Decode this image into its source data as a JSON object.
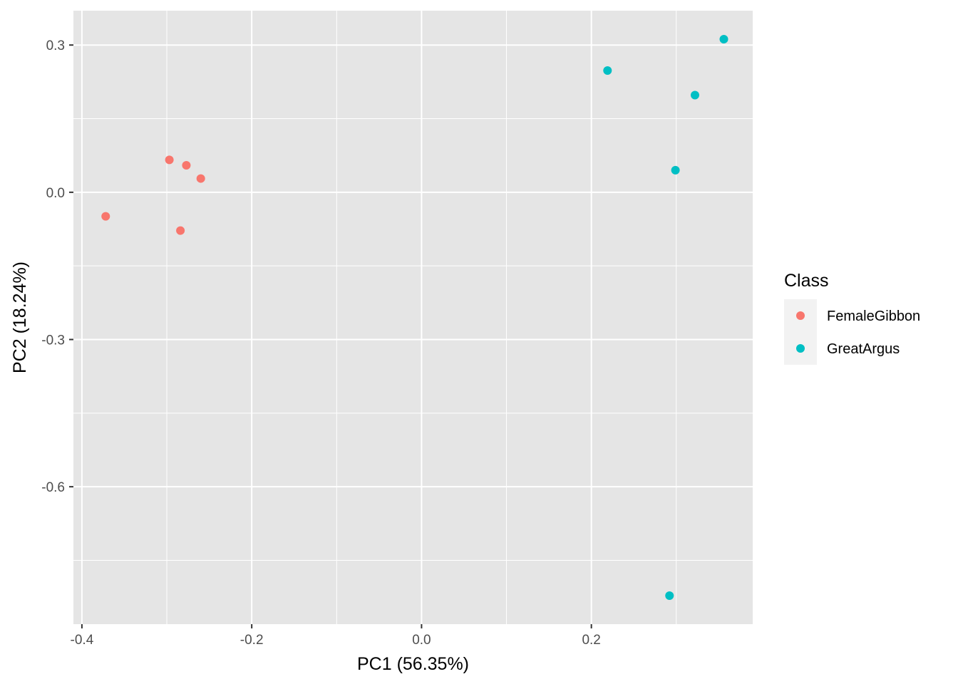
{
  "chart_data": {
    "type": "scatter",
    "xlabel": "PC1 (56.35%)",
    "ylabel": "PC2 (18.24%)",
    "xlim": [
      -0.41,
      0.39
    ],
    "ylim": [
      -0.88,
      0.37
    ],
    "x_ticks": [
      -0.4,
      -0.2,
      0.0,
      0.2
    ],
    "x_tick_labels": [
      "-0.4",
      "-0.2",
      "0.0",
      "0.2"
    ],
    "y_ticks": [
      0.3,
      0.0,
      -0.3,
      -0.6
    ],
    "y_tick_labels": [
      "0.3",
      "0.0",
      "-0.3",
      "-0.6"
    ],
    "grid": true,
    "legend": {
      "title": "Class",
      "placement": "right"
    },
    "panel_background": "#e5e5e5",
    "grid_color": "#ffffff",
    "series": [
      {
        "name": "FemaleGibbon",
        "color": "#F8766D",
        "points": [
          {
            "x": -0.372,
            "y": -0.049
          },
          {
            "x": -0.297,
            "y": 0.066
          },
          {
            "x": -0.277,
            "y": 0.055
          },
          {
            "x": -0.26,
            "y": 0.028
          },
          {
            "x": -0.284,
            "y": -0.078
          }
        ]
      },
      {
        "name": "GreatArgus",
        "color": "#00BFC4",
        "points": [
          {
            "x": 0.219,
            "y": 0.248
          },
          {
            "x": 0.299,
            "y": 0.045
          },
          {
            "x": 0.322,
            "y": 0.198
          },
          {
            "x": 0.356,
            "y": 0.312
          },
          {
            "x": 0.292,
            "y": -0.822
          }
        ]
      }
    ]
  }
}
